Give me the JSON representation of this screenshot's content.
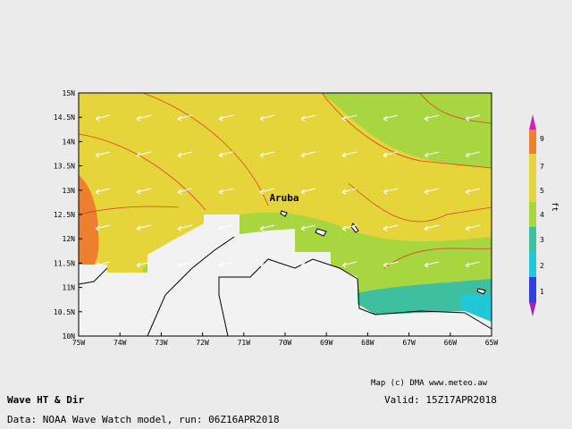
{
  "map": {
    "label": "Aruba",
    "lat_labels": [
      "15N",
      "14.5N",
      "14N",
      "13.5N",
      "13N",
      "12.5N",
      "12N",
      "11.5N",
      "11N",
      "10.5N",
      "10N"
    ],
    "lon_labels": [
      "75W",
      "74W",
      "73W",
      "72W",
      "71W",
      "70W",
      "69W",
      "68W",
      "67W",
      "66W",
      "65W"
    ]
  },
  "colorbar": {
    "labels": [
      "9",
      "7",
      "5",
      "4",
      "3",
      "2",
      "1"
    ],
    "unit": "ft"
  },
  "credit": "Map (c) DMA www.meteo.aw",
  "title": "Wave HT & Dir",
  "valid": "Valid: 15Z17APR2018",
  "source": "Data: NOAA Wave Watch model, run: 06Z16APR2018"
}
